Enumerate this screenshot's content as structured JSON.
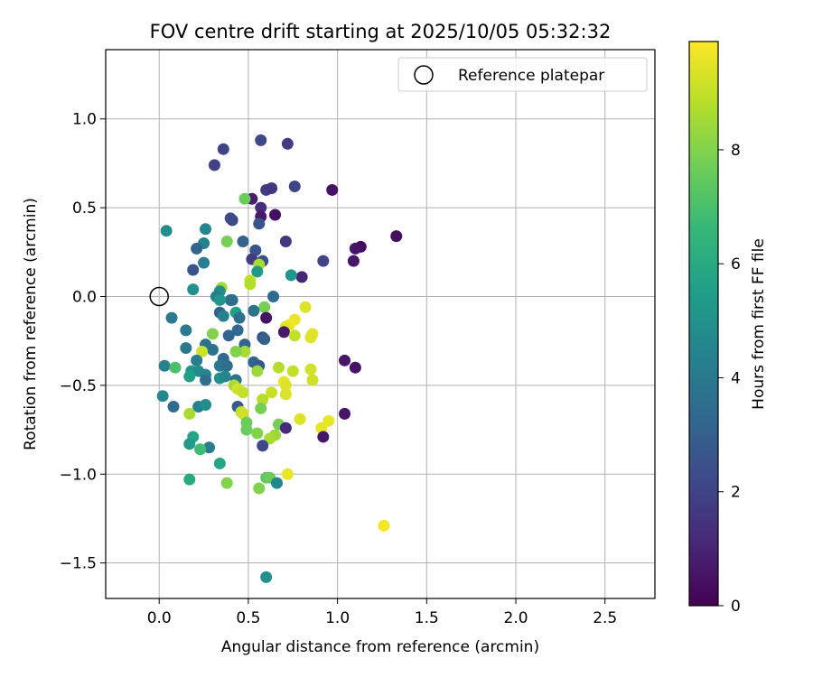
{
  "chart_data": {
    "type": "scatter",
    "title": "FOV centre drift starting at 2025/10/05 05:32:32",
    "xlabel": "Angular distance from reference (arcmin)",
    "ylabel": "Rotation from reference (arcmin)",
    "xlim": [
      -0.3,
      2.78
    ],
    "ylim": [
      -1.7,
      1.39
    ],
    "xticks": [
      0.0,
      0.5,
      1.0,
      1.5,
      2.0,
      2.5
    ],
    "xtick_labels": [
      "0.0",
      "0.5",
      "1.0",
      "1.5",
      "2.0",
      "2.5"
    ],
    "yticks": [
      1.0,
      0.5,
      0.0,
      -0.5,
      -1.0,
      -1.5
    ],
    "ytick_labels": [
      "1.0",
      "0.5",
      "0.0",
      "−0.5",
      "−1.0",
      "−1.5"
    ],
    "grid": true,
    "legend": {
      "label": "Reference platepar",
      "placement": "top-right"
    },
    "reference_point": {
      "x": 0.0,
      "y": 0.0
    },
    "colorbar": {
      "label": "Hours from first FF file",
      "range": [
        0,
        9.9
      ],
      "ticks": [
        0,
        2,
        4,
        6,
        8
      ],
      "tick_labels": [
        "0",
        "2",
        "4",
        "6",
        "8"
      ],
      "colormap": [
        "#440154",
        "#482878",
        "#3e4989",
        "#31688e",
        "#26828e",
        "#1f9e89",
        "#35b779",
        "#6ece58",
        "#b5de2b",
        "#fde725"
      ]
    },
    "points": [
      {
        "x": 0.36,
        "y": 0.83,
        "h": 2.0
      },
      {
        "x": 0.57,
        "y": 0.88,
        "h": 2.2
      },
      {
        "x": 0.72,
        "y": 0.86,
        "h": 1.8
      },
      {
        "x": 0.31,
        "y": 0.74,
        "h": 1.9
      },
      {
        "x": 0.52,
        "y": 0.55,
        "h": 0.8
      },
      {
        "x": 0.48,
        "y": 0.55,
        "h": 7.6
      },
      {
        "x": 0.6,
        "y": 0.6,
        "h": 1.8
      },
      {
        "x": 0.63,
        "y": 0.61,
        "h": 1.6
      },
      {
        "x": 0.76,
        "y": 0.62,
        "h": 2.1
      },
      {
        "x": 0.97,
        "y": 0.6,
        "h": 0.5
      },
      {
        "x": 0.57,
        "y": 0.5,
        "h": 1.3
      },
      {
        "x": 0.65,
        "y": 0.46,
        "h": 0.4
      },
      {
        "x": 0.57,
        "y": 0.45,
        "h": 0.7
      },
      {
        "x": 0.4,
        "y": 0.44,
        "h": 2.4
      },
      {
        "x": 0.41,
        "y": 0.43,
        "h": 2.2
      },
      {
        "x": 0.56,
        "y": 0.41,
        "h": 2.6
      },
      {
        "x": 0.04,
        "y": 0.37,
        "h": 4.8
      },
      {
        "x": 0.26,
        "y": 0.38,
        "h": 4.6
      },
      {
        "x": 1.33,
        "y": 0.34,
        "h": 0.4
      },
      {
        "x": 0.71,
        "y": 0.31,
        "h": 1.6
      },
      {
        "x": 0.47,
        "y": 0.31,
        "h": 3.1
      },
      {
        "x": 0.38,
        "y": 0.31,
        "h": 7.8
      },
      {
        "x": 0.25,
        "y": 0.3,
        "h": 4.4
      },
      {
        "x": 0.21,
        "y": 0.27,
        "h": 3.2
      },
      {
        "x": 1.13,
        "y": 0.28,
        "h": 0.3
      },
      {
        "x": 1.1,
        "y": 0.27,
        "h": 0.6
      },
      {
        "x": 0.54,
        "y": 0.26,
        "h": 2.6
      },
      {
        "x": 0.52,
        "y": 0.21,
        "h": 1.8
      },
      {
        "x": 0.58,
        "y": 0.2,
        "h": 2.5
      },
      {
        "x": 0.92,
        "y": 0.2,
        "h": 2.0
      },
      {
        "x": 1.09,
        "y": 0.2,
        "h": 0.6
      },
      {
        "x": 0.25,
        "y": 0.19,
        "h": 4.2
      },
      {
        "x": 0.56,
        "y": 0.18,
        "h": 8.6
      },
      {
        "x": 0.19,
        "y": 0.15,
        "h": 2.6
      },
      {
        "x": 0.55,
        "y": 0.14,
        "h": 5.4
      },
      {
        "x": 0.8,
        "y": 0.11,
        "h": 1.0
      },
      {
        "x": 0.74,
        "y": 0.12,
        "h": 5.2
      },
      {
        "x": 0.51,
        "y": 0.09,
        "h": 9.0
      },
      {
        "x": 0.51,
        "y": 0.07,
        "h": 8.8
      },
      {
        "x": 0.35,
        "y": 0.05,
        "h": 8.6
      },
      {
        "x": 0.19,
        "y": 0.04,
        "h": 5.0
      },
      {
        "x": 0.34,
        "y": 0.03,
        "h": 4.8
      },
      {
        "x": 0.32,
        "y": 0.0,
        "h": 4.2
      },
      {
        "x": 0.4,
        "y": -0.02,
        "h": 3.8
      },
      {
        "x": 0.41,
        "y": -0.02,
        "h": 3.6
      },
      {
        "x": 0.64,
        "y": 0.0,
        "h": 3.4
      },
      {
        "x": 0.34,
        "y": -0.02,
        "h": 5.2
      },
      {
        "x": 0.59,
        "y": -0.06,
        "h": 7.8
      },
      {
        "x": 0.82,
        "y": -0.06,
        "h": 9.4
      },
      {
        "x": 0.53,
        "y": -0.08,
        "h": 3.8
      },
      {
        "x": 0.34,
        "y": -0.09,
        "h": 3.0
      },
      {
        "x": 0.36,
        "y": -0.11,
        "h": 4.4
      },
      {
        "x": 0.43,
        "y": -0.09,
        "h": 5.6
      },
      {
        "x": 0.45,
        "y": -0.12,
        "h": 3.6
      },
      {
        "x": 0.07,
        "y": -0.12,
        "h": 4.0
      },
      {
        "x": 0.6,
        "y": -0.12,
        "h": 0.5
      },
      {
        "x": 0.76,
        "y": -0.13,
        "h": 9.6
      },
      {
        "x": 0.73,
        "y": -0.16,
        "h": 9.7
      },
      {
        "x": 0.71,
        "y": -0.17,
        "h": 9.5
      },
      {
        "x": 0.44,
        "y": -0.19,
        "h": 3.4
      },
      {
        "x": 0.15,
        "y": -0.19,
        "h": 4.0
      },
      {
        "x": 0.7,
        "y": -0.2,
        "h": 0.7
      },
      {
        "x": 0.86,
        "y": -0.21,
        "h": 9.5
      },
      {
        "x": 0.76,
        "y": -0.22,
        "h": 9.0
      },
      {
        "x": 0.85,
        "y": -0.23,
        "h": 9.4
      },
      {
        "x": 0.3,
        "y": -0.21,
        "h": 8.0
      },
      {
        "x": 0.39,
        "y": -0.22,
        "h": 3.2
      },
      {
        "x": 0.58,
        "y": -0.23,
        "h": 2.6
      },
      {
        "x": 0.59,
        "y": -0.24,
        "h": 3.0
      },
      {
        "x": 0.26,
        "y": -0.27,
        "h": 3.8
      },
      {
        "x": 0.48,
        "y": -0.27,
        "h": 3.2
      },
      {
        "x": 0.15,
        "y": -0.29,
        "h": 4.0
      },
      {
        "x": 0.3,
        "y": -0.3,
        "h": 3.8
      },
      {
        "x": 0.24,
        "y": -0.31,
        "h": 9.2
      },
      {
        "x": 0.48,
        "y": -0.31,
        "h": 8.6
      },
      {
        "x": 0.43,
        "y": -0.31,
        "h": 8.0
      },
      {
        "x": 0.21,
        "y": -0.36,
        "h": 4.2
      },
      {
        "x": 0.36,
        "y": -0.35,
        "h": 3.4
      },
      {
        "x": 0.53,
        "y": -0.37,
        "h": 3.2
      },
      {
        "x": 1.04,
        "y": -0.36,
        "h": 0.6
      },
      {
        "x": 0.56,
        "y": -0.39,
        "h": 2.8
      },
      {
        "x": 0.03,
        "y": -0.39,
        "h": 4.4
      },
      {
        "x": 0.34,
        "y": -0.39,
        "h": 4.0
      },
      {
        "x": 0.38,
        "y": -0.39,
        "h": 3.6
      },
      {
        "x": 0.09,
        "y": -0.4,
        "h": 7.0
      },
      {
        "x": 0.67,
        "y": -0.4,
        "h": 8.8
      },
      {
        "x": 0.75,
        "y": -0.42,
        "h": 9.0
      },
      {
        "x": 0.85,
        "y": -0.41,
        "h": 9.2
      },
      {
        "x": 1.1,
        "y": -0.4,
        "h": 0.5
      },
      {
        "x": 0.18,
        "y": -0.42,
        "h": 5.2
      },
      {
        "x": 0.22,
        "y": -0.42,
        "h": 4.8
      },
      {
        "x": 0.26,
        "y": -0.44,
        "h": 4.6
      },
      {
        "x": 0.55,
        "y": -0.42,
        "h": 8.4
      },
      {
        "x": 0.17,
        "y": -0.45,
        "h": 5.6
      },
      {
        "x": 0.34,
        "y": -0.46,
        "h": 5.0
      },
      {
        "x": 0.37,
        "y": -0.45,
        "h": 4.6
      },
      {
        "x": 0.26,
        "y": -0.47,
        "h": 3.6
      },
      {
        "x": 0.43,
        "y": -0.47,
        "h": 3.8
      },
      {
        "x": 0.86,
        "y": -0.47,
        "h": 9.2
      },
      {
        "x": 0.7,
        "y": -0.48,
        "h": 9.6
      },
      {
        "x": 0.71,
        "y": -0.5,
        "h": 9.4
      },
      {
        "x": 0.42,
        "y": -0.5,
        "h": 8.6
      },
      {
        "x": 0.44,
        "y": -0.52,
        "h": 9.2
      },
      {
        "x": 0.47,
        "y": -0.54,
        "h": 9.0
      },
      {
        "x": 0.63,
        "y": -0.54,
        "h": 9.1
      },
      {
        "x": 0.71,
        "y": -0.55,
        "h": 9.4
      },
      {
        "x": 0.58,
        "y": -0.58,
        "h": 8.8
      },
      {
        "x": 0.02,
        "y": -0.56,
        "h": 4.6
      },
      {
        "x": 0.22,
        "y": -0.62,
        "h": 4.4
      },
      {
        "x": 0.26,
        "y": -0.61,
        "h": 4.8
      },
      {
        "x": 0.08,
        "y": -0.62,
        "h": 3.4
      },
      {
        "x": 0.44,
        "y": -0.62,
        "h": 2.8
      },
      {
        "x": 0.57,
        "y": -0.63,
        "h": 7.8
      },
      {
        "x": 0.46,
        "y": -0.65,
        "h": 9.0
      },
      {
        "x": 0.47,
        "y": -0.66,
        "h": 9.2
      },
      {
        "x": 0.17,
        "y": -0.66,
        "h": 8.6
      },
      {
        "x": 1.04,
        "y": -0.66,
        "h": 0.6
      },
      {
        "x": 0.79,
        "y": -0.69,
        "h": 9.4
      },
      {
        "x": 0.95,
        "y": -0.7,
        "h": 9.6
      },
      {
        "x": 0.49,
        "y": -0.71,
        "h": 7.6
      },
      {
        "x": 0.67,
        "y": -0.72,
        "h": 7.8
      },
      {
        "x": 0.91,
        "y": -0.74,
        "h": 9.6
      },
      {
        "x": 0.71,
        "y": -0.74,
        "h": 1.2
      },
      {
        "x": 0.49,
        "y": -0.75,
        "h": 7.6
      },
      {
        "x": 0.55,
        "y": -0.77,
        "h": 8.0
      },
      {
        "x": 0.65,
        "y": -0.78,
        "h": 8.4
      },
      {
        "x": 0.62,
        "y": -0.8,
        "h": 8.6
      },
      {
        "x": 0.92,
        "y": -0.79,
        "h": 0.6
      },
      {
        "x": 0.19,
        "y": -0.79,
        "h": 5.8
      },
      {
        "x": 0.17,
        "y": -0.83,
        "h": 5.4
      },
      {
        "x": 0.58,
        "y": -0.84,
        "h": 2.2
      },
      {
        "x": 0.28,
        "y": -0.85,
        "h": 4.2
      },
      {
        "x": 0.23,
        "y": -0.86,
        "h": 6.8
      },
      {
        "x": 0.34,
        "y": -0.94,
        "h": 5.8
      },
      {
        "x": 0.17,
        "y": -1.03,
        "h": 6.0
      },
      {
        "x": 0.6,
        "y": -1.02,
        "h": 7.4
      },
      {
        "x": 0.62,
        "y": -1.02,
        "h": 7.6
      },
      {
        "x": 0.72,
        "y": -1.0,
        "h": 9.6
      },
      {
        "x": 0.66,
        "y": -1.05,
        "h": 4.6
      },
      {
        "x": 0.38,
        "y": -1.05,
        "h": 8.0
      },
      {
        "x": 0.56,
        "y": -1.08,
        "h": 8.0
      },
      {
        "x": 1.26,
        "y": -1.29,
        "h": 9.8
      },
      {
        "x": 0.6,
        "y": -1.58,
        "h": 5.0
      }
    ]
  }
}
